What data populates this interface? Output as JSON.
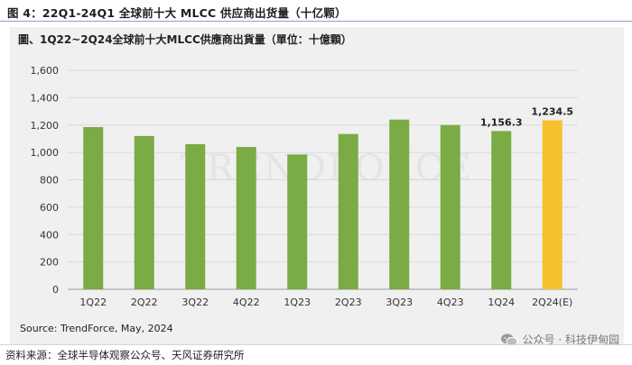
{
  "figure_title": "图 4：22Q1-24Q1 全球前十大 MLCC 供应商出货量（十亿颗）",
  "watermark": "TRENDFORCE",
  "source": "Source: TrendForce, May, 2024",
  "footer_left": "资料来源：全球半导体观察公众号、天风证券研究所",
  "footer_right": "公众号 · 科技伊甸园",
  "colors": {
    "bar": "#7aab45",
    "highlight": "#f5c12e",
    "panel": "#f0f0f0",
    "grid": "#d9d9d9"
  },
  "chart_data": {
    "type": "bar",
    "title": "圖、1Q22~2Q24全球前十大MLCC供應商出貨量（單位：十億顆）",
    "categories": [
      "1Q22",
      "2Q22",
      "3Q22",
      "4Q22",
      "1Q23",
      "2Q23",
      "3Q23",
      "4Q23",
      "1Q24",
      "2Q24(E)"
    ],
    "values": [
      1185,
      1120,
      1060,
      1040,
      985,
      1135,
      1240,
      1200,
      1156.3,
      1234.5
    ],
    "data_labels": [
      "",
      "",
      "",
      "",
      "",
      "",
      "",
      "",
      "1,156.3",
      "1,234.5"
    ],
    "highlight_index": 9,
    "ylim": [
      0,
      1600
    ],
    "yticks": [
      0,
      200,
      400,
      600,
      800,
      1000,
      1200,
      1400,
      1600
    ],
    "ytick_labels": [
      "0",
      "200",
      "400",
      "600",
      "800",
      "1,000",
      "1,200",
      "1,400",
      "1,600"
    ],
    "grid": true,
    "xlabel": "",
    "ylabel": ""
  }
}
